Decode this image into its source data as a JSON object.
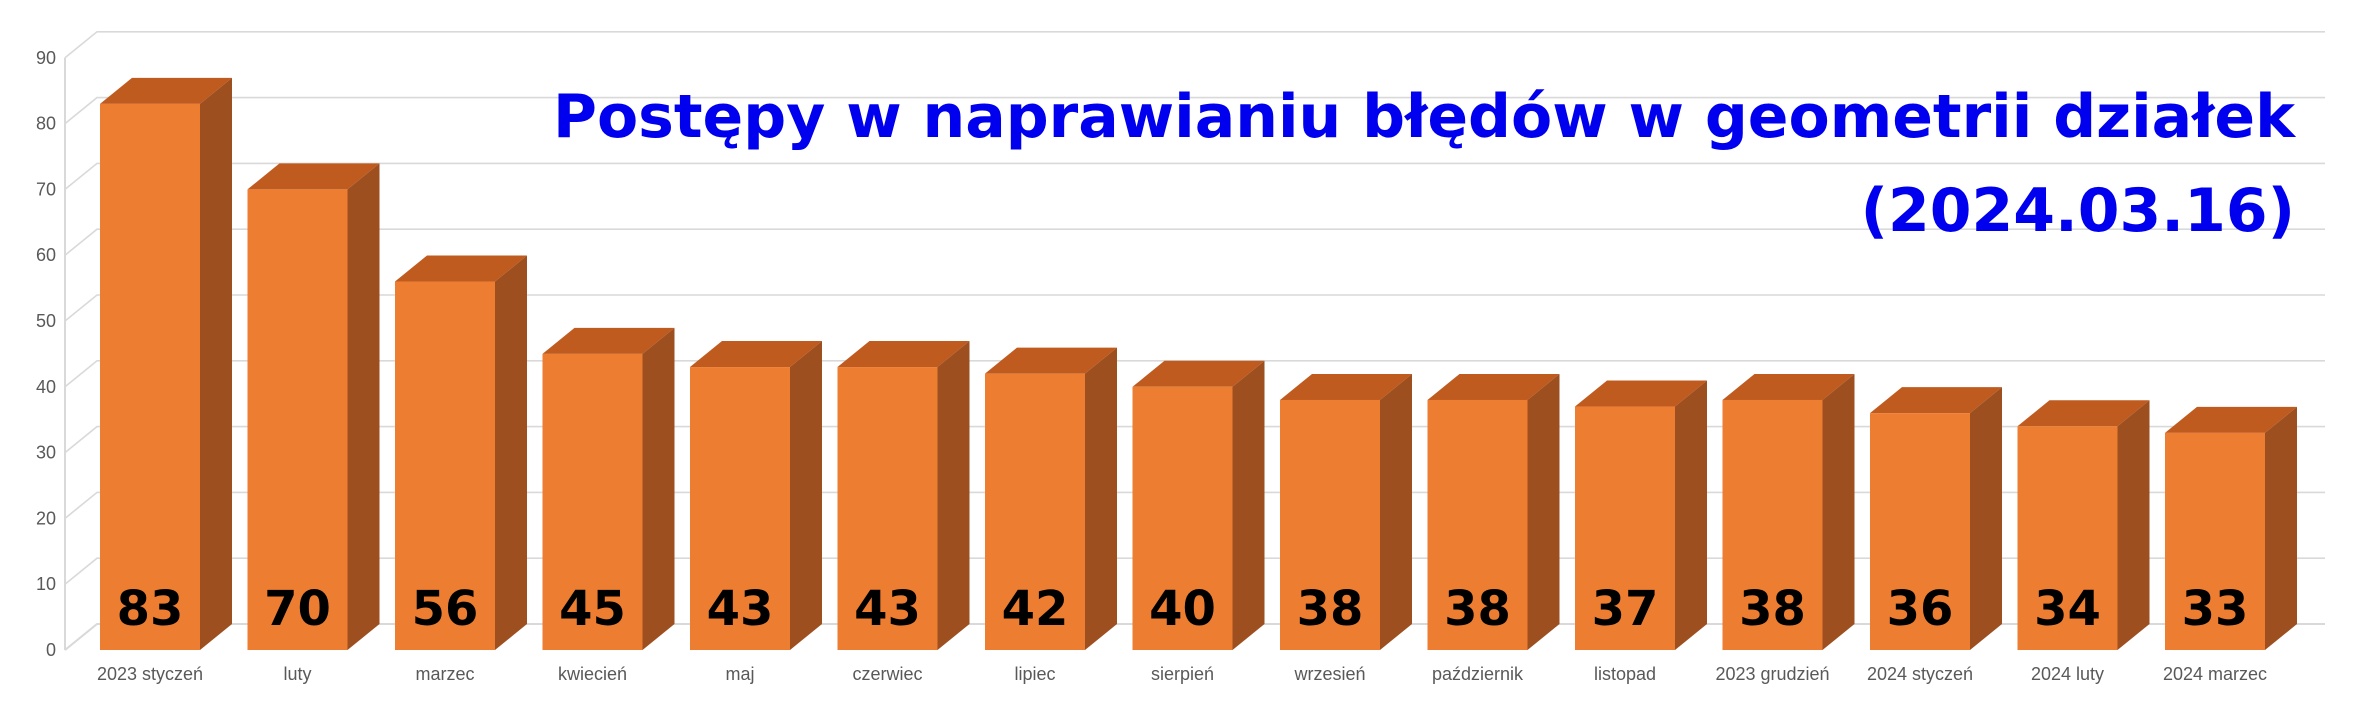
{
  "chart_data": {
    "type": "bar",
    "title": "Postępy w naprawianiu błędów w geometrii działek",
    "subtitle": "(2024.03.16)",
    "categories": [
      "2023 styczeń",
      "luty",
      "marzec",
      "kwiecień",
      "maj",
      "czerwiec",
      "lipiec",
      "sierpień",
      "wrzesień",
      "październik",
      "listopad",
      "2023 grudzień",
      "2024 styczeń",
      "2024 luty",
      "2024 marzec"
    ],
    "values": [
      83,
      70,
      56,
      45,
      43,
      43,
      42,
      40,
      38,
      38,
      37,
      38,
      36,
      34,
      33
    ],
    "data_labels": [
      "83",
      "70",
      "56",
      "45",
      "43",
      "43",
      "42",
      "40",
      "38",
      "38",
      "37",
      "38",
      "36",
      "34",
      "33"
    ],
    "ylim": [
      0,
      90
    ],
    "yticks": [
      0,
      10,
      20,
      30,
      40,
      50,
      60,
      70,
      80,
      90
    ],
    "grid": true,
    "style": "3d-column",
    "colors": {
      "front": "#ed7d31",
      "top": "#c05b1f",
      "side": "#9e4f1f",
      "title": "#0000ee",
      "grid": "#d9d9d9",
      "axis_text": "#595959"
    }
  }
}
